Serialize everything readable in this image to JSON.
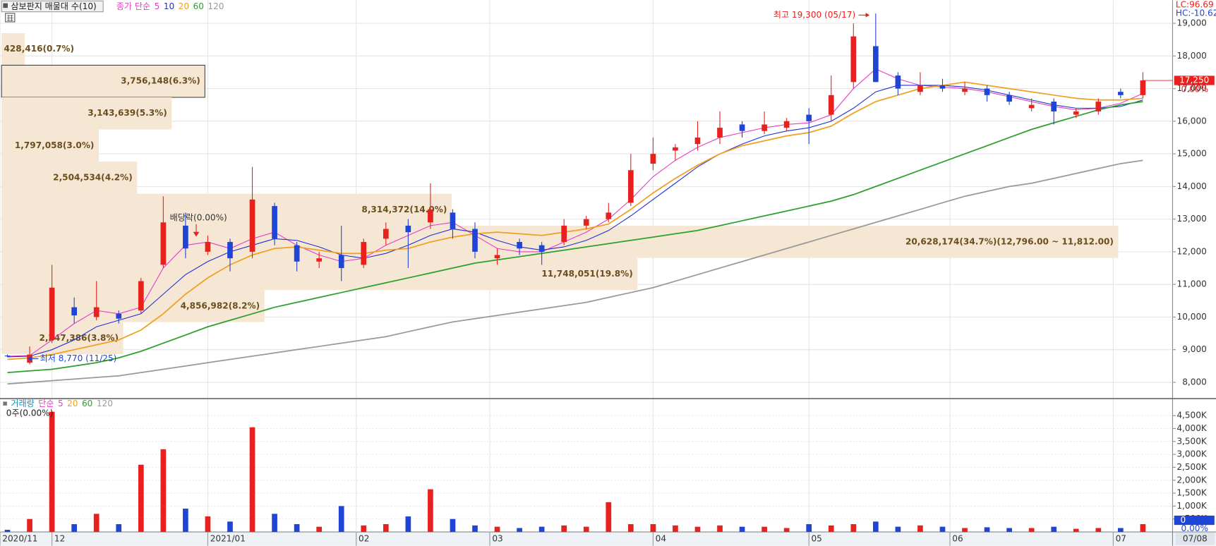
{
  "header": {
    "title": "삼보판지 매물대 수(10)"
  },
  "chart_data": {
    "type": "candlestick",
    "legend_label": "종가 단순",
    "x": [
      0,
      3,
      6,
      9,
      12,
      15,
      18,
      21,
      24,
      27,
      30,
      33,
      36,
      39,
      42,
      45,
      48,
      51,
      54,
      57,
      60,
      63,
      66,
      69,
      72,
      75,
      78,
      81,
      84,
      87,
      90,
      93,
      96,
      99,
      102,
      105,
      108,
      111,
      114,
      117,
      120,
      123,
      126,
      129,
      132,
      135,
      138,
      141,
      144,
      147,
      150,
      153
    ],
    "xlim": [
      -1,
      157
    ],
    "xticks": [
      {
        "value": -1,
        "label": "2020/11"
      },
      {
        "value": 6,
        "label": "12"
      },
      {
        "value": 27,
        "label": "2021/01"
      },
      {
        "value": 47,
        "label": "02"
      },
      {
        "value": 65,
        "label": "03"
      },
      {
        "value": 87,
        "label": "04"
      },
      {
        "value": 108,
        "label": "05"
      },
      {
        "value": 127,
        "label": "06"
      },
      {
        "value": 149,
        "label": "07"
      }
    ],
    "last_date": "07/08",
    "ylim": [
      7525,
      19710
    ],
    "yticks": [
      {
        "value": 8000,
        "label": "8,000"
      },
      {
        "value": 9000,
        "label": "9,000"
      },
      {
        "value": 10000,
        "label": "10,000"
      },
      {
        "value": 11000,
        "label": "11,000"
      },
      {
        "value": 12000,
        "label": "12,000"
      },
      {
        "value": 13000,
        "label": "13,000"
      },
      {
        "value": 14000,
        "label": "14,000"
      },
      {
        "value": 15000,
        "label": "15,000"
      },
      {
        "value": 16000,
        "label": "16,000"
      },
      {
        "value": 17000,
        "label": "17,000"
      },
      {
        "value": 18000,
        "label": "18,000"
      },
      {
        "value": 19000,
        "label": "19,000"
      }
    ],
    "grid": true,
    "up_color": "#e8211e",
    "down_color": "#1f45d6",
    "candles": [
      [
        8820,
        8850,
        8770,
        8800
      ],
      [
        8600,
        9100,
        8550,
        8850
      ],
      [
        9300,
        11600,
        9200,
        10900
      ],
      [
        10300,
        10600,
        9800,
        10050
      ],
      [
        10000,
        11100,
        9900,
        10300
      ],
      [
        10100,
        10200,
        9800,
        9950
      ],
      [
        10200,
        11200,
        10100,
        11100
      ],
      [
        11600,
        13700,
        11500,
        12900
      ],
      [
        12800,
        13200,
        11800,
        12100
      ],
      [
        12000,
        12500,
        11900,
        12300
      ],
      [
        12300,
        12400,
        11400,
        11800
      ],
      [
        12000,
        14600,
        11800,
        13600
      ],
      [
        13400,
        13500,
        12200,
        12400
      ],
      [
        12200,
        12300,
        11400,
        11700
      ],
      [
        11700,
        12000,
        11500,
        11800
      ],
      [
        11900,
        12800,
        11100,
        11500
      ],
      [
        11600,
        12400,
        11500,
        12300
      ],
      [
        12400,
        12900,
        12200,
        12700
      ],
      [
        12800,
        13000,
        11500,
        12600
      ],
      [
        12900,
        14100,
        12700,
        13300
      ],
      [
        13200,
        13300,
        12400,
        12700
      ],
      [
        12700,
        12900,
        11800,
        12000
      ],
      [
        11800,
        12100,
        11600,
        11900
      ],
      [
        12300,
        12400,
        11900,
        12100
      ],
      [
        12200,
        12300,
        11600,
        12000
      ],
      [
        12300,
        13000,
        12200,
        12800
      ],
      [
        12800,
        13100,
        12700,
        13000
      ],
      [
        13000,
        13500,
        12900,
        13200
      ],
      [
        13500,
        15000,
        13400,
        14500
      ],
      [
        14700,
        15500,
        14500,
        15000
      ],
      [
        15100,
        15300,
        14800,
        15200
      ],
      [
        15300,
        16000,
        15100,
        15500
      ],
      [
        15500,
        16300,
        15300,
        15800
      ],
      [
        15900,
        16000,
        15500,
        15700
      ],
      [
        15700,
        16300,
        15600,
        15900
      ],
      [
        15800,
        16100,
        15700,
        16000
      ],
      [
        16200,
        16400,
        15300,
        16000
      ],
      [
        16200,
        17400,
        16000,
        16800
      ],
      [
        17200,
        19000,
        17000,
        18600
      ],
      [
        18300,
        19300,
        17200,
        17200
      ],
      [
        17400,
        17500,
        16800,
        17000
      ],
      [
        16900,
        17500,
        16800,
        17100
      ],
      [
        17100,
        17300,
        16900,
        17000
      ],
      [
        16900,
        17200,
        16800,
        17000
      ],
      [
        17000,
        17100,
        16600,
        16800
      ],
      [
        16800,
        16900,
        16500,
        16600
      ],
      [
        16400,
        16700,
        16300,
        16500
      ],
      [
        16600,
        16700,
        15900,
        16300
      ],
      [
        16200,
        16400,
        16100,
        16300
      ],
      [
        16300,
        16700,
        16200,
        16600
      ],
      [
        16900,
        17000,
        16700,
        16800
      ],
      [
        16800,
        17500,
        16700,
        17250
      ]
    ],
    "series": [
      {
        "name": "5",
        "color": "#e23fc4",
        "values": [
          8800,
          8820,
          9300,
          9800,
          10200,
          10100,
          10300,
          11500,
          12200,
          12300,
          12100,
          12400,
          12600,
          12200,
          11900,
          11700,
          11800,
          12200,
          12500,
          12800,
          12900,
          12500,
          12100,
          12000,
          12000,
          12300,
          12600,
          13000,
          13600,
          14300,
          14800,
          15200,
          15500,
          15650,
          15800,
          15900,
          15950,
          16200,
          17000,
          17600,
          17300,
          17100,
          17050,
          17000,
          16900,
          16750,
          16600,
          16450,
          16350,
          16400,
          16550,
          16850
        ]
      },
      {
        "name": "10",
        "color": "#2030d0",
        "values": [
          8780,
          8800,
          9000,
          9300,
          9700,
          9900,
          10100,
          10700,
          11300,
          11700,
          12000,
          12200,
          12400,
          12350,
          12150,
          11900,
          11800,
          11950,
          12200,
          12500,
          12700,
          12600,
          12350,
          12150,
          12050,
          12150,
          12350,
          12650,
          13100,
          13600,
          14100,
          14600,
          15000,
          15300,
          15550,
          15700,
          15800,
          16000,
          16400,
          16900,
          17100,
          17100,
          17100,
          17050,
          16950,
          16800,
          16650,
          16500,
          16400,
          16400,
          16450,
          16650
        ]
      },
      {
        "name": "20",
        "color": "#f0a020",
        "values": [
          8700,
          8750,
          8850,
          9000,
          9150,
          9300,
          9600,
          10100,
          10700,
          11200,
          11600,
          11900,
          12100,
          12150,
          12050,
          11950,
          11950,
          12050,
          12100,
          12300,
          12450,
          12550,
          12600,
          12550,
          12500,
          12600,
          12700,
          12850,
          13300,
          13800,
          14250,
          14650,
          15000,
          15250,
          15400,
          15550,
          15650,
          15850,
          16250,
          16600,
          16800,
          17000,
          17100,
          17200,
          17100,
          17000,
          16900,
          16800,
          16700,
          16650,
          16650,
          16700
        ]
      },
      {
        "name": "60",
        "color": "#2ca02c",
        "values": [
          8300,
          8350,
          8400,
          8500,
          8600,
          8750,
          8950,
          9200,
          9450,
          9700,
          9900,
          10100,
          10300,
          10450,
          10600,
          10750,
          10900,
          11050,
          11200,
          11350,
          11500,
          11650,
          11750,
          11850,
          11950,
          12050,
          12150,
          12250,
          12350,
          12450,
          12550,
          12650,
          12800,
          12950,
          13100,
          13250,
          13400,
          13550,
          13750,
          14000,
          14250,
          14500,
          14750,
          15000,
          15250,
          15500,
          15750,
          15950,
          16150,
          16350,
          16500,
          16600
        ]
      },
      {
        "name": "120",
        "color": "#999999",
        "values": [
          7950,
          8000,
          8050,
          8100,
          8150,
          8200,
          8300,
          8400,
          8500,
          8600,
          8700,
          8800,
          8900,
          9000,
          9100,
          9200,
          9300,
          9400,
          9550,
          9700,
          9850,
          9950,
          10050,
          10150,
          10250,
          10350,
          10450,
          10600,
          10750,
          10900,
          11100,
          11300,
          11500,
          11700,
          11900,
          12100,
          12300,
          12500,
          12700,
          12900,
          13100,
          13300,
          13500,
          13700,
          13850,
          14000,
          14100,
          14250,
          14400,
          14550,
          14700,
          14800
        ]
      }
    ],
    "volume_profile": {
      "bins": [
        18700,
        17716,
        16732,
        15748,
        14764,
        13780,
        12796,
        11812,
        10828,
        9844,
        8860
      ],
      "values": [
        428416,
        3756148,
        3143639,
        1797058,
        2504534,
        8314372,
        20628174,
        11748051,
        4856982,
        2247386
      ],
      "value_labels": [
        "428,416(0.7%)",
        "3,756,148(6.3%)",
        "3,143,639(5.3%)",
        "1,797,058(3.0%)",
        "2,504,534(4.2%)",
        "8,314,372(14.0%)",
        "20,628,174(34.7%)(12,796.00 ~ 11,812.00)",
        "11,748,051(19.8%)",
        "4,856,982(8.2%)",
        "2,247,386(3.8%)"
      ],
      "color": "#f6e7d4",
      "label_color": "#6b4e1e"
    },
    "annotations": {
      "high": "최고 19,300 (05/17)",
      "low": "최저 8,770 (11/25)",
      "dividend": "배당락(0.00%)"
    },
    "price_tag": "17,250",
    "price_change": "0.00%",
    "indicators": {
      "lc": "LC:96.69",
      "hc": "HC:-10.62"
    },
    "volume": {
      "legend_label": "거래량",
      "ma_label": "단순",
      "legend": [
        {
          "name": "5",
          "color": "#e23fc4"
        },
        {
          "name": "20",
          "color": "#f0a020"
        },
        {
          "name": "60",
          "color": "#2ca02c"
        },
        {
          "name": "120",
          "color": "#999999"
        }
      ],
      "info": "0주(0.00%)",
      "values": [
        80000,
        500000,
        4650000,
        300000,
        700000,
        300000,
        2600000,
        3200000,
        900000,
        600000,
        400000,
        4050000,
        700000,
        300000,
        200000,
        1000000,
        250000,
        300000,
        600000,
        1650000,
        500000,
        250000,
        200000,
        150000,
        200000,
        250000,
        200000,
        1150000,
        300000,
        300000,
        250000,
        200000,
        250000,
        200000,
        200000,
        150000,
        300000,
        250000,
        300000,
        400000,
        200000,
        250000,
        200000,
        150000,
        180000,
        150000,
        150000,
        200000,
        120000,
        150000,
        150000,
        300000
      ],
      "ylim": [
        0,
        5130000
      ],
      "yticks": [
        {
          "value": 500000,
          "label": "500K"
        },
        {
          "value": 1000000,
          "label": "1,000K"
        },
        {
          "value": 1500000,
          "label": "1,500K"
        },
        {
          "value": 2000000,
          "label": "2,000K"
        },
        {
          "value": 2500000,
          "label": "2,500K"
        },
        {
          "value": 3000000,
          "label": "3,000K"
        },
        {
          "value": 3500000,
          "label": "3,500K"
        },
        {
          "value": 4000000,
          "label": "4,000K"
        },
        {
          "value": 4500000,
          "label": "4,500K"
        }
      ],
      "tag": "0",
      "tag_change": "0.00%"
    }
  }
}
